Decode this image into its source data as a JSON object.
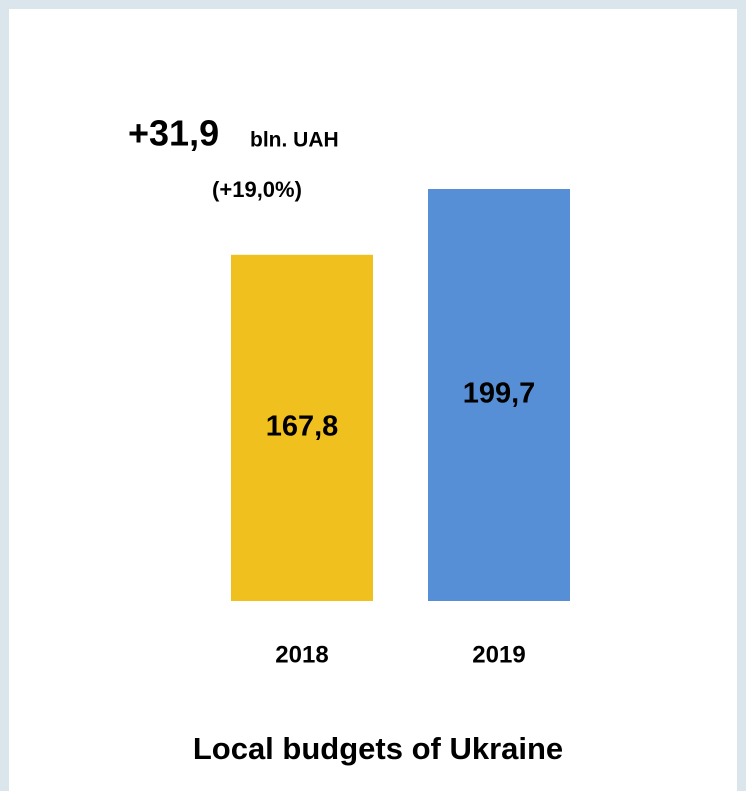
{
  "chart_data": {
    "type": "bar",
    "title": "Local budgets of Ukraine",
    "annotations": {
      "change": "+31,9",
      "unit": "bln. UAH",
      "percent": "(+19,0%)"
    },
    "categories": [
      "2018",
      "2019"
    ],
    "values": [
      167.8,
      199.7
    ],
    "value_labels": [
      "167,8",
      "199,7"
    ],
    "colors": [
      "#f0c01e",
      "#568fd6"
    ],
    "value_label_colors": [
      "#000000",
      "#ffffff"
    ]
  }
}
